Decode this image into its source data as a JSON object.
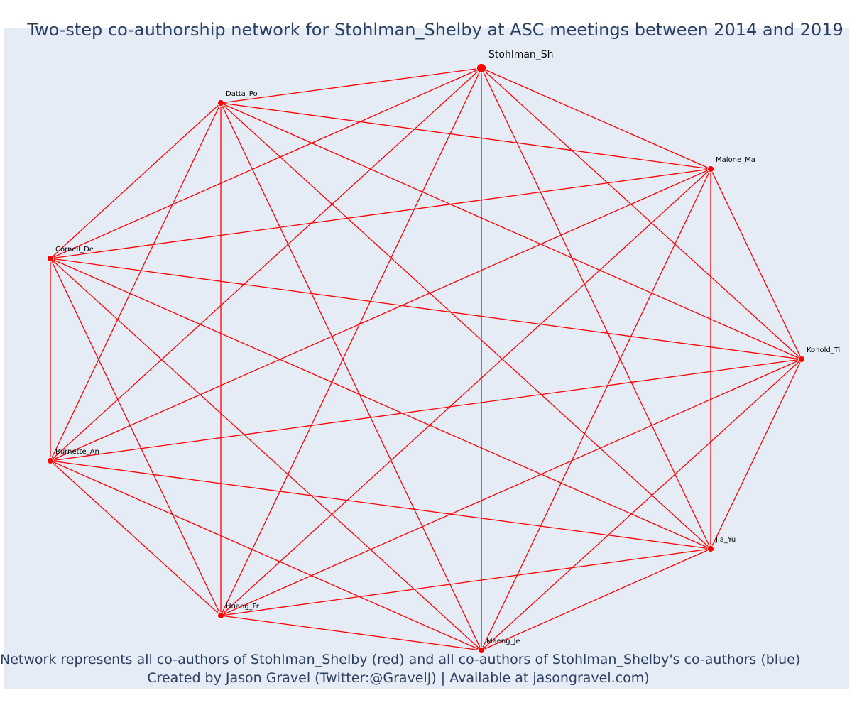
{
  "title": "Two-step co-authorship network for Stohlman_Shelby at ASC meetings between 2014 and 2019",
  "footer": {
    "line1": "Network represents all co-authors of Stohlman_Shelby (red) and all co-authors of Stohlman_Shelby's co-authors (blue)",
    "line2": "Created by Jason Gravel (Twitter:@GravelJ) | Available at jasongravel.com)"
  },
  "colors": {
    "plot_background": "#e5ecf6",
    "edge": "#ff0000",
    "node": "#ff0000",
    "text": "#2a3f5f"
  },
  "network": {
    "focal_node": "Stohlman_Sh",
    "nodes": [
      "Stohlman_Sh",
      "Malone_Ma",
      "Konold_Ti",
      "Jia_Yu",
      "Maeng_Je",
      "Huang_Fr",
      "Burnette_An",
      "Cornell_De",
      "Datta_Po"
    ],
    "edges": "complete"
  }
}
